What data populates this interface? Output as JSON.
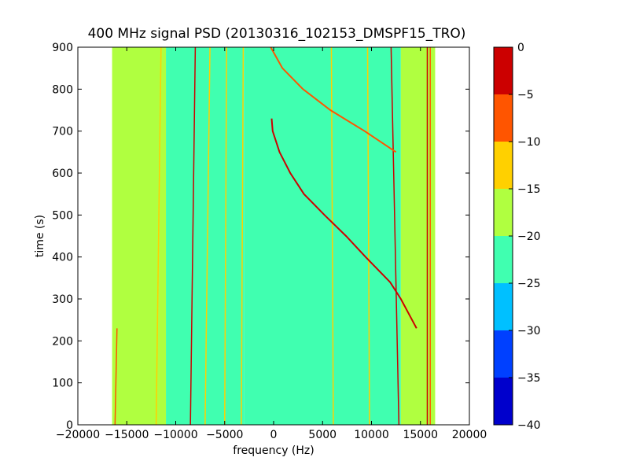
{
  "chart_data": {
    "type": "heatmap",
    "title": "400 MHz signal PSD (20130316_102153_DMSPF15_TRO)",
    "xlabel": "frequency (Hz)",
    "ylabel": "time (s)",
    "xlim": [
      -20000,
      20000
    ],
    "ylim": [
      0,
      900
    ],
    "x_ticks": [
      -20000,
      -15000,
      -10000,
      -5000,
      0,
      5000,
      10000,
      15000,
      20000
    ],
    "x_tick_labels": [
      "−20000",
      "−15000",
      "−10000",
      "−5000",
      "0",
      "5000",
      "10000",
      "15000",
      "20000"
    ],
    "y_ticks": [
      0,
      100,
      200,
      300,
      400,
      500,
      600,
      700,
      800,
      900
    ],
    "y_tick_labels": [
      "0",
      "100",
      "200",
      "300",
      "400",
      "500",
      "600",
      "700",
      "800",
      "900"
    ],
    "data_extent_x": [
      -16500,
      16500
    ],
    "data_extent_y": [
      0,
      900
    ],
    "colorbar": {
      "range": [
        -40,
        0
      ],
      "ticks": [
        0,
        -5,
        -10,
        -15,
        -20,
        -25,
        -30,
        -35,
        -40
      ],
      "tick_labels": [
        "0",
        "−5",
        "−10",
        "−15",
        "−20",
        "−25",
        "−30",
        "−35",
        "−40"
      ],
      "levels": [
        {
          "from": -40,
          "to": -35,
          "color": "#0000cc"
        },
        {
          "from": -35,
          "to": -30,
          "color": "#0040ff"
        },
        {
          "from": -30,
          "to": -25,
          "color": "#00c0ff"
        },
        {
          "from": -25,
          "to": -20,
          "color": "#40ffb0"
        },
        {
          "from": -20,
          "to": -15,
          "color": "#b0ff40"
        },
        {
          "from": -15,
          "to": -10,
          "color": "#ffd000"
        },
        {
          "from": -10,
          "to": -5,
          "color": "#ff5500"
        },
        {
          "from": -5,
          "to": 0,
          "color": "#cc0000"
        }
      ]
    },
    "regions": [
      {
        "x0": -16500,
        "x1": -11000,
        "level": -17.5
      },
      {
        "x0": -11000,
        "x1": -3000,
        "level": -20
      },
      {
        "x0": -3000,
        "x1": 13000,
        "level": -22.5
      },
      {
        "x0": 13000,
        "x1": 16500,
        "level": -17.5
      }
    ],
    "vertical_lines": [
      {
        "x": [
          -16200,
          -16000
        ],
        "t": [
          0,
          230
        ],
        "level": -7.5
      },
      {
        "x": [
          -8500,
          -8000
        ],
        "t": [
          0,
          900
        ],
        "level": -2.5
      },
      {
        "x": [
          -7000,
          -6500
        ],
        "t": [
          0,
          900
        ],
        "level": -12.5
      },
      {
        "x": [
          -12000,
          -11500
        ],
        "t": [
          0,
          900
        ],
        "level": -12.5
      },
      {
        "x": [
          -5000,
          -4800
        ],
        "t": [
          0,
          900
        ],
        "level": -12.5
      },
      {
        "x": [
          -3300,
          -3100
        ],
        "t": [
          0,
          900
        ],
        "level": -12.5
      },
      {
        "x": [
          6100,
          5900
        ],
        "t": [
          0,
          900
        ],
        "level": -12.5
      },
      {
        "x": [
          9800,
          9600
        ],
        "t": [
          0,
          900
        ],
        "level": -12.5
      },
      {
        "x": [
          12800,
          12000
        ],
        "t": [
          0,
          900
        ],
        "level": -2.5
      },
      {
        "x": [
          15700,
          15700
        ],
        "t": [
          0,
          900
        ],
        "level": -2.5
      },
      {
        "x": [
          16000,
          16000
        ],
        "t": [
          0,
          900
        ],
        "level": -7.5
      }
    ],
    "traces": [
      {
        "name": "",
        "level": -2.5,
        "t": [
          230,
          300,
          340,
          400,
          450,
          500,
          550,
          600,
          650,
          700,
          730
        ],
        "x": [
          14600,
          13000,
          11900,
          9400,
          7400,
          5200,
          3100,
          1700,
          600,
          -100,
          -200
        ]
      },
      {
        "name": "",
        "level": -7.5,
        "t": [
          650,
          700,
          750,
          800,
          850,
          900
        ],
        "x": [
          12500,
          9300,
          5800,
          3000,
          900,
          -300
        ]
      }
    ]
  }
}
